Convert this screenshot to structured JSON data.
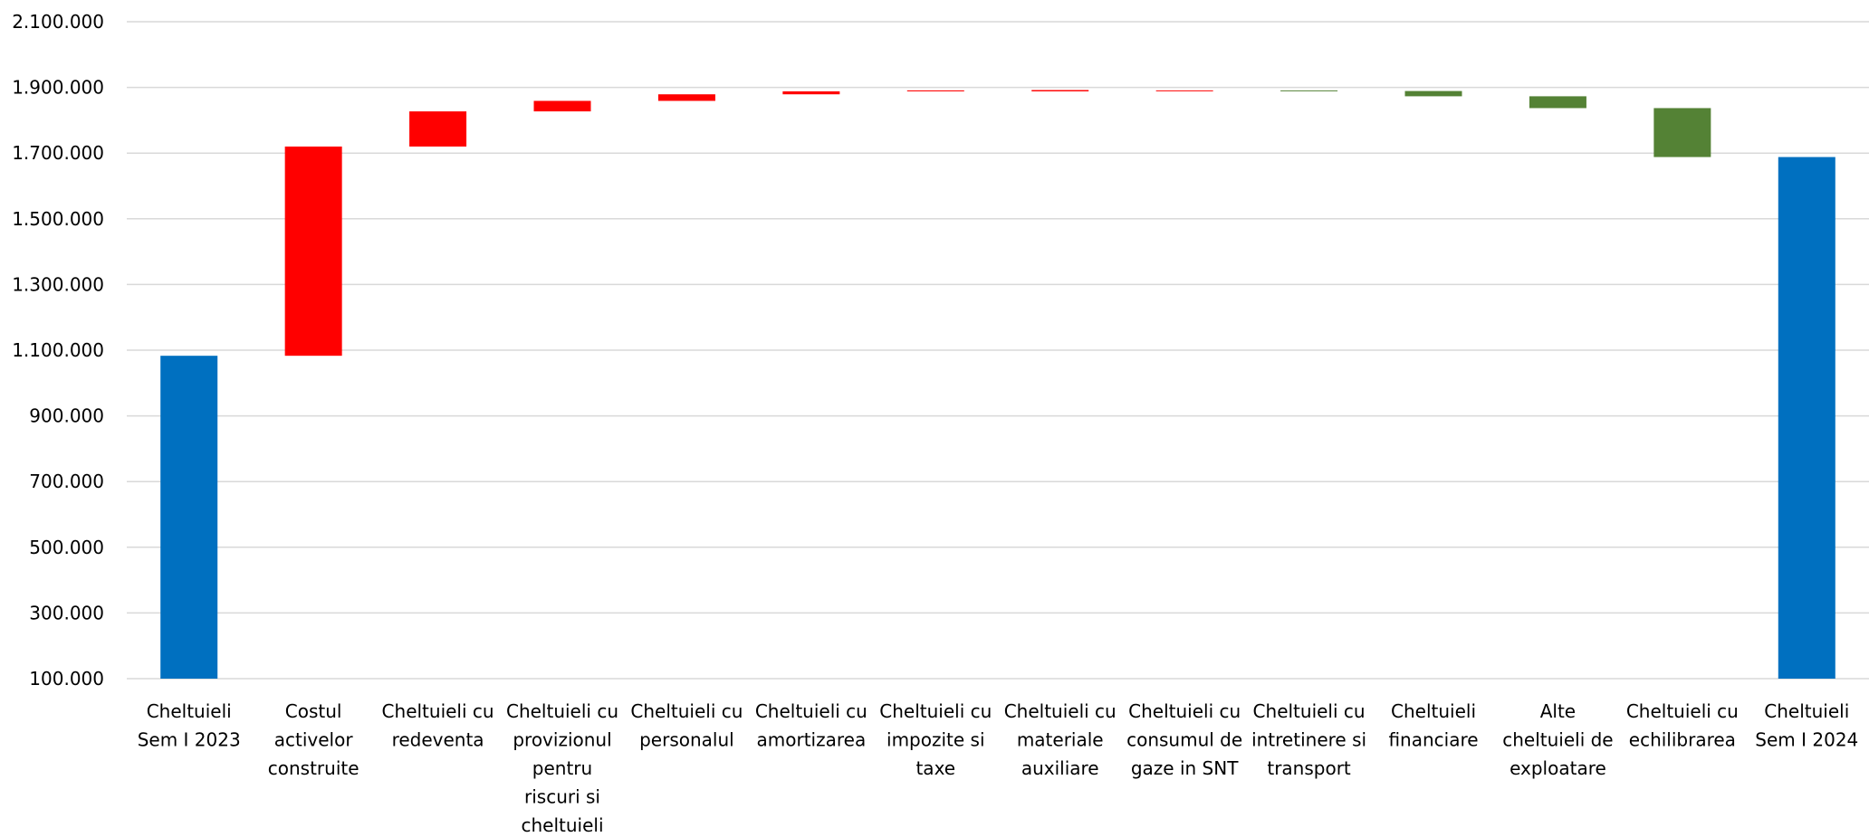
{
  "chart_data": {
    "type": "bar",
    "subtype": "waterfall",
    "title": "",
    "xlabel": "",
    "ylabel": "",
    "ylim": [
      100000,
      2100000
    ],
    "yticks": [
      "100.000",
      "300.000",
      "500.000",
      "700.000",
      "900.000",
      "1.100.000",
      "1.300.000",
      "1.500.000",
      "1.700.000",
      "1.900.000",
      "2.100.000"
    ],
    "grid": true,
    "legend": "none",
    "colors": {
      "total": "#0070C0",
      "increase": "#FF0000",
      "decrease": "#548235"
    },
    "categories": [
      {
        "label_lines": [
          "Cheltuieli",
          "Sem I 2023"
        ],
        "kind": "total",
        "start": 100000,
        "end": 1083000
      },
      {
        "label_lines": [
          "Costul",
          "activelor",
          "construite"
        ],
        "kind": "increase",
        "start": 1083000,
        "end": 1720000
      },
      {
        "label_lines": [
          "Cheltuieli cu",
          "redeventa"
        ],
        "kind": "increase",
        "start": 1720000,
        "end": 1827000
      },
      {
        "label_lines": [
          "Cheltuieli cu",
          "provizionul",
          "pentru",
          "riscuri si",
          "cheltuieli"
        ],
        "kind": "increase",
        "start": 1827000,
        "end": 1859000
      },
      {
        "label_lines": [
          "Cheltuieli cu",
          "personalul"
        ],
        "kind": "increase",
        "start": 1859000,
        "end": 1879000
      },
      {
        "label_lines": [
          "Cheltuieli cu",
          "amortizarea"
        ],
        "kind": "increase",
        "start": 1879000,
        "end": 1888000
      },
      {
        "label_lines": [
          "Cheltuieli cu",
          "impozite si",
          "taxe"
        ],
        "kind": "increase",
        "start": 1888000,
        "end": 1891000
      },
      {
        "label_lines": [
          "Cheltuieli cu",
          "materiale",
          "auxiliare"
        ],
        "kind": "increase",
        "start": 1888000,
        "end": 1892000
      },
      {
        "label_lines": [
          "Cheltuieli cu",
          "consumul de",
          "gaze in SNT"
        ],
        "kind": "increase",
        "start": 1889000,
        "end": 1891000
      },
      {
        "label_lines": [
          "Cheltuieli cu",
          "intretinere si",
          "transport"
        ],
        "kind": "decrease",
        "start": 1891000,
        "end": 1889000
      },
      {
        "label_lines": [
          "Cheltuieli",
          "financiare"
        ],
        "kind": "decrease",
        "start": 1889000,
        "end": 1873000
      },
      {
        "label_lines": [
          "Alte",
          "cheltuieli de",
          "exploatare"
        ],
        "kind": "decrease",
        "start": 1873000,
        "end": 1837000
      },
      {
        "label_lines": [
          "Cheltuieli cu",
          "echilibrarea"
        ],
        "kind": "decrease",
        "start": 1837000,
        "end": 1688000
      },
      {
        "label_lines": [
          "Cheltuieli",
          "Sem I 2024"
        ],
        "kind": "total",
        "start": 100000,
        "end": 1688000
      }
    ]
  }
}
